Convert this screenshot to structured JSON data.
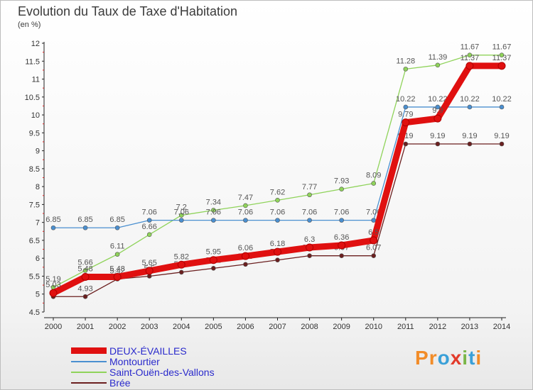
{
  "header": {
    "title": "Evolution du Taux de Taxe d'Habitation",
    "subtitle": "(en %)"
  },
  "logo": {
    "text": "Proxiti",
    "letters": [
      {
        "ch": "P",
        "color": "#f28c28"
      },
      {
        "ch": "r",
        "color": "#f28c28"
      },
      {
        "ch": "o",
        "color": "#3aa0d8"
      },
      {
        "ch": "x",
        "color": "#e23b2b"
      },
      {
        "ch": "i",
        "color": "#7ab648"
      },
      {
        "ch": "t",
        "color": "#3aa0d8"
      },
      {
        "ch": "i",
        "color": "#f28c28"
      }
    ]
  },
  "chart_data": {
    "type": "line",
    "title": "Evolution du Taux de Taxe d'Habitation",
    "subtitle": "(en %)",
    "x": [
      "2000",
      "2001",
      "2002",
      "2003",
      "2004",
      "2005",
      "2006",
      "2007",
      "2008",
      "2009",
      "2010",
      "2011",
      "2012",
      "2013",
      "2014"
    ],
    "ylim": [
      4.5,
      12
    ],
    "yticks": [
      "4.5",
      "5",
      "5.5",
      "6",
      "6.5",
      "7",
      "7.5",
      "8",
      "8.5",
      "9",
      "9.5",
      "10",
      "10.5",
      "11",
      "11.5",
      "12"
    ],
    "grid": false,
    "legend_position": "bottom-left",
    "series": [
      {
        "name": "Saint-Ouën-des-Vallons",
        "color": "#8fd35a",
        "values": [
          5.19,
          5.66,
          6.11,
          6.66,
          7.2,
          7.34,
          7.47,
          7.62,
          7.77,
          7.93,
          8.09,
          11.28,
          11.39,
          11.67,
          11.67
        ],
        "labels": [
          "5.19",
          "5.66",
          "6.11",
          "6.66",
          "7.2",
          "7.34",
          "7.47",
          "7.62",
          "7.77",
          "7.93",
          "8.09",
          "11.28",
          "11.39",
          "11.67",
          "11.67"
        ]
      },
      {
        "name": "Montourtier",
        "color": "#4a8fd0",
        "values": [
          6.85,
          6.85,
          6.85,
          7.06,
          7.06,
          7.06,
          7.06,
          7.06,
          7.06,
          7.06,
          7.06,
          10.22,
          10.22,
          10.22,
          10.22
        ],
        "labels": [
          "6.85",
          "6.85",
          "6.85",
          "7.06",
          "7.06",
          "7.06",
          "7.06",
          "7.06",
          "7.06",
          "7.06",
          "7.06",
          "10.22",
          "10.22",
          "10.22",
          "10.22"
        ]
      },
      {
        "name": "Brée",
        "color": "#6b1f1f",
        "values": [
          4.93,
          4.93,
          5.42,
          5.5,
          5.61,
          5.72,
          5.83,
          5.95,
          6.07,
          6.07,
          6.07,
          9.19,
          9.19,
          9.19,
          9.19
        ],
        "labels": [
          "",
          "4.93",
          "5.42",
          "5.5",
          "5.61",
          "5.72",
          "5.83",
          "5.95",
          "6.07",
          "6.07",
          "6.07",
          "9.19",
          "9.19",
          "9.19",
          "9.19"
        ]
      },
      {
        "name": "DEUX-ÉVAILLES",
        "color": "#e01010",
        "values": [
          5.03,
          5.48,
          5.48,
          5.65,
          5.82,
          5.95,
          6.06,
          6.18,
          6.3,
          6.36,
          6.5,
          9.79,
          9.9,
          11.37,
          11.37
        ],
        "labels": [
          "5.03",
          "5.48",
          "5.48",
          "5.65",
          "5.82",
          "5.95",
          "6.06",
          "6.18",
          "6.3",
          "6.36",
          "6.5",
          "9.79",
          "9.9",
          "11.37",
          "11.37"
        ]
      }
    ],
    "legend": [
      {
        "name": "DEUX-ÉVAILLES",
        "color": "#e01010",
        "weight": 9
      },
      {
        "name": "Montourtier",
        "color": "#4a8fd0",
        "weight": 2
      },
      {
        "name": "Saint-Ouën-des-Vallons",
        "color": "#8fd35a",
        "weight": 2
      },
      {
        "name": "Brée",
        "color": "#6b1f1f",
        "weight": 2
      }
    ]
  }
}
